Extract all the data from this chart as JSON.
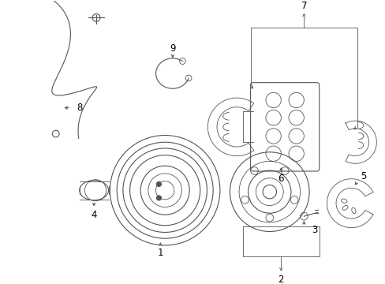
{
  "background_color": "#ffffff",
  "line_color": "#555555",
  "label_color": "#000000",
  "fig_width": 4.89,
  "fig_height": 3.6,
  "dpi": 100
}
